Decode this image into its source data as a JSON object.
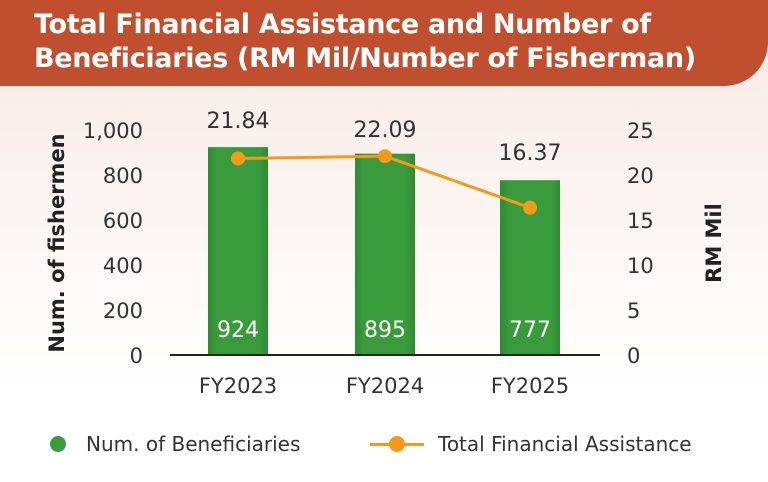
{
  "header": {
    "title": "Total Financial Assistance and Number of Beneficiaries (RM Mil/Number of Fisherman)"
  },
  "colors": {
    "header_bg": "#bf4f2f",
    "bar": "#3a9b3c",
    "line": "#f39a1c"
  },
  "legend": {
    "bars_label": "Num. of Beneficiaries",
    "line_label": "Total Financial Assistance"
  },
  "chart_data": {
    "type": "bar",
    "title": "Total Financial Assistance and Number of Beneficiaries (RM Mil/Number of Fisherman)",
    "categories": [
      "FY2023",
      "FY2024",
      "FY2025"
    ],
    "ylabel": "Num. of fishermen",
    "y2label": "RM Mil",
    "ylim": [
      0,
      1000
    ],
    "y2lim": [
      0,
      25
    ],
    "yticks": [
      "0",
      "200",
      "400",
      "600",
      "800",
      "1,000"
    ],
    "y2ticks": [
      "0",
      "5",
      "10",
      "15",
      "20",
      "25"
    ],
    "series": [
      {
        "name": "Num. of Beneficiaries",
        "type": "bar",
        "axis": "left",
        "values": [
          924,
          895,
          777
        ],
        "labels": [
          "924",
          "895",
          "777"
        ]
      },
      {
        "name": "Total Financial Assistance",
        "type": "line",
        "axis": "right",
        "values": [
          21.84,
          22.09,
          16.37
        ],
        "labels": [
          "21.84",
          "22.09",
          "16.37"
        ]
      }
    ],
    "legend_position": "bottom",
    "grid": false
  }
}
